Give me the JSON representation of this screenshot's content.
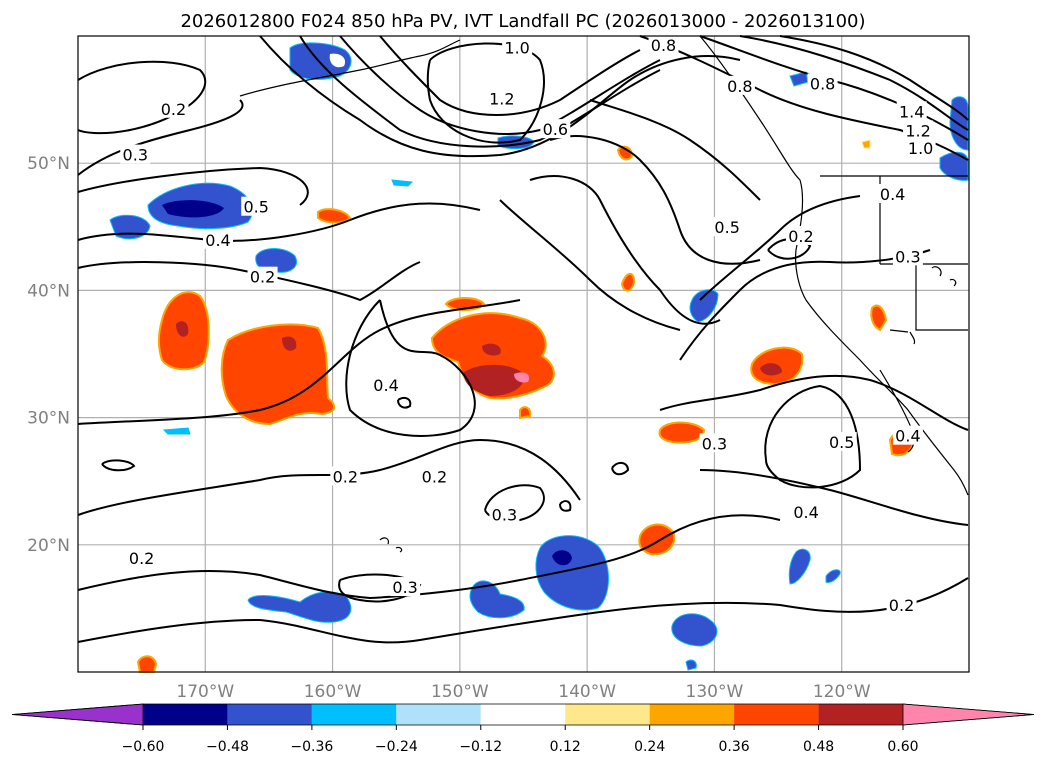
{
  "chart_data": {
    "type": "contour_map",
    "title": "2026012800 F024 850 hPa PV, IVT Landfall PC (2026013000 - 2026013100)",
    "lon_range": [
      -180,
      -110
    ],
    "lat_range": [
      10,
      60
    ],
    "x_ticks": [
      {
        "value": -170,
        "label": "170°W"
      },
      {
        "value": -160,
        "label": "160°W"
      },
      {
        "value": -150,
        "label": "150°W"
      },
      {
        "value": -140,
        "label": "140°W"
      },
      {
        "value": -130,
        "label": "130°W"
      },
      {
        "value": -120,
        "label": "120°W"
      }
    ],
    "y_ticks": [
      {
        "value": 20,
        "label": "20°N"
      },
      {
        "value": 30,
        "label": "30°N"
      },
      {
        "value": 40,
        "label": "40°N"
      },
      {
        "value": 50,
        "label": "50°N"
      }
    ],
    "grid": true,
    "colorbar": {
      "orientation": "horizontal",
      "extend": "both",
      "levels": [
        -0.72,
        -0.6,
        -0.48,
        -0.36,
        -0.24,
        -0.12,
        0.12,
        0.24,
        0.36,
        0.48,
        0.6,
        0.72
      ],
      "colors": [
        "#9932cc",
        "#00008b",
        "#3352cd",
        "#00bfff",
        "#afe1fa",
        "#ffffff",
        "#ffe88c",
        "#ffa500",
        "#ff4500",
        "#b22222",
        "#ff85ad"
      ],
      "tick_labels": [
        "−0.60",
        "−0.48",
        "−0.36",
        "−0.24",
        "−0.12",
        "0.12",
        "0.24",
        "0.36",
        "0.48",
        "0.60"
      ]
    },
    "pv_contour_labels": [
      {
        "text": "0.2",
        "lon": -172.5,
        "lat": 54.2
      },
      {
        "text": "0.3",
        "lon": -175.5,
        "lat": 50.6
      },
      {
        "text": "0.5",
        "lon": -166.0,
        "lat": 46.5
      },
      {
        "text": "0.4",
        "lon": -169.0,
        "lat": 43.9
      },
      {
        "text": "0.2",
        "lon": -165.5,
        "lat": 41.0
      },
      {
        "text": "0.4",
        "lon": -155.8,
        "lat": 32.5
      },
      {
        "text": "0.2",
        "lon": -152.0,
        "lat": 25.3
      },
      {
        "text": "0.2",
        "lon": -159.0,
        "lat": 25.3
      },
      {
        "text": "0.3",
        "lon": -146.5,
        "lat": 22.3
      },
      {
        "text": "0.2",
        "lon": -175.0,
        "lat": 18.9
      },
      {
        "text": "0.3",
        "lon": -154.3,
        "lat": 16.6
      },
      {
        "text": "1.0",
        "lon": -145.5,
        "lat": 59.0
      },
      {
        "text": "1.2",
        "lon": -146.7,
        "lat": 55.0
      },
      {
        "text": "0.6",
        "lon": -142.5,
        "lat": 52.6
      },
      {
        "text": "0.8",
        "lon": -134.0,
        "lat": 59.2
      },
      {
        "text": "0.8",
        "lon": -128.0,
        "lat": 56.0
      },
      {
        "text": "0.8",
        "lon": -121.5,
        "lat": 56.2
      },
      {
        "text": "1.4",
        "lon": -114.5,
        "lat": 54.0
      },
      {
        "text": "1.2",
        "lon": -114.0,
        "lat": 52.5
      },
      {
        "text": "1.0",
        "lon": -113.8,
        "lat": 51.1
      },
      {
        "text": "0.5",
        "lon": -129.0,
        "lat": 44.9
      },
      {
        "text": "0.2",
        "lon": -123.2,
        "lat": 44.2
      },
      {
        "text": "0.4",
        "lon": -116.0,
        "lat": 47.5
      },
      {
        "text": "0.3",
        "lon": -114.8,
        "lat": 42.6
      },
      {
        "text": "0.3",
        "lon": -130.0,
        "lat": 27.9
      },
      {
        "text": "0.5",
        "lon": -120.0,
        "lat": 28.0
      },
      {
        "text": "0.4",
        "lon": -114.8,
        "lat": 28.5
      },
      {
        "text": "0.4",
        "lon": -122.8,
        "lat": 22.5
      },
      {
        "text": "0.2",
        "lon": -115.3,
        "lat": 15.2
      }
    ]
  }
}
